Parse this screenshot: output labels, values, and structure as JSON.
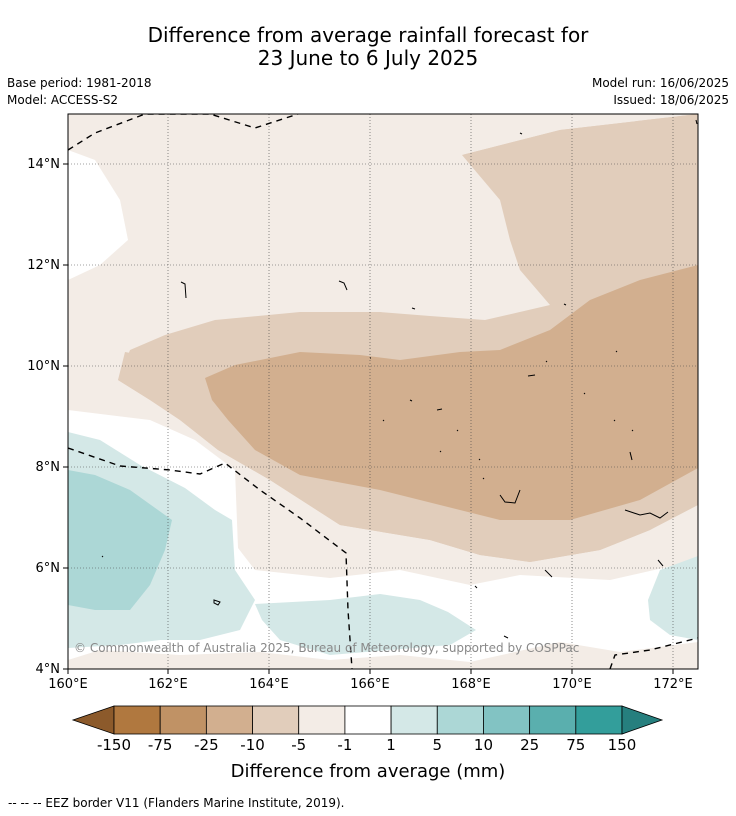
{
  "title": {
    "line1": "Difference from average rainfall forecast for",
    "line2": "23 June to 6 July 2025"
  },
  "meta": {
    "base_period": "Base period: 1981-2018",
    "model": "Model: ACCESS-S2",
    "model_run": "Model run: 16/06/2025",
    "issued": "Issued: 18/06/2025"
  },
  "map": {
    "lon_ticks": [
      "160°E",
      "162°E",
      "164°E",
      "166°E",
      "168°E",
      "170°E",
      "172°E"
    ],
    "lat_ticks": [
      "14°N",
      "12°N",
      "10°N",
      "8°N",
      "6°N",
      "4°N"
    ],
    "copyright": "© Commonwealth of Australia 2025, Bureau of Meteorology, supported by COSPPac"
  },
  "colorbar": {
    "labels": [
      "-150",
      "-75",
      "-25",
      "-10",
      "-5",
      "-1",
      "1",
      "5",
      "10",
      "25",
      "75",
      "150"
    ],
    "colors": [
      "#8c5a2b",
      "#b0783f",
      "#c09265",
      "#d2af8f",
      "#e1cdbb",
      "#f3ece6",
      "#ffffff",
      "#d4e8e7",
      "#acd7d6",
      "#82c3c3",
      "#5aafae",
      "#339e9b",
      "#267f7e"
    ],
    "title": "Difference from average (mm)"
  },
  "legend": {
    "eez": "--  --  -- EEZ border V11 (Flanders Marine Institute, 2019)."
  }
}
